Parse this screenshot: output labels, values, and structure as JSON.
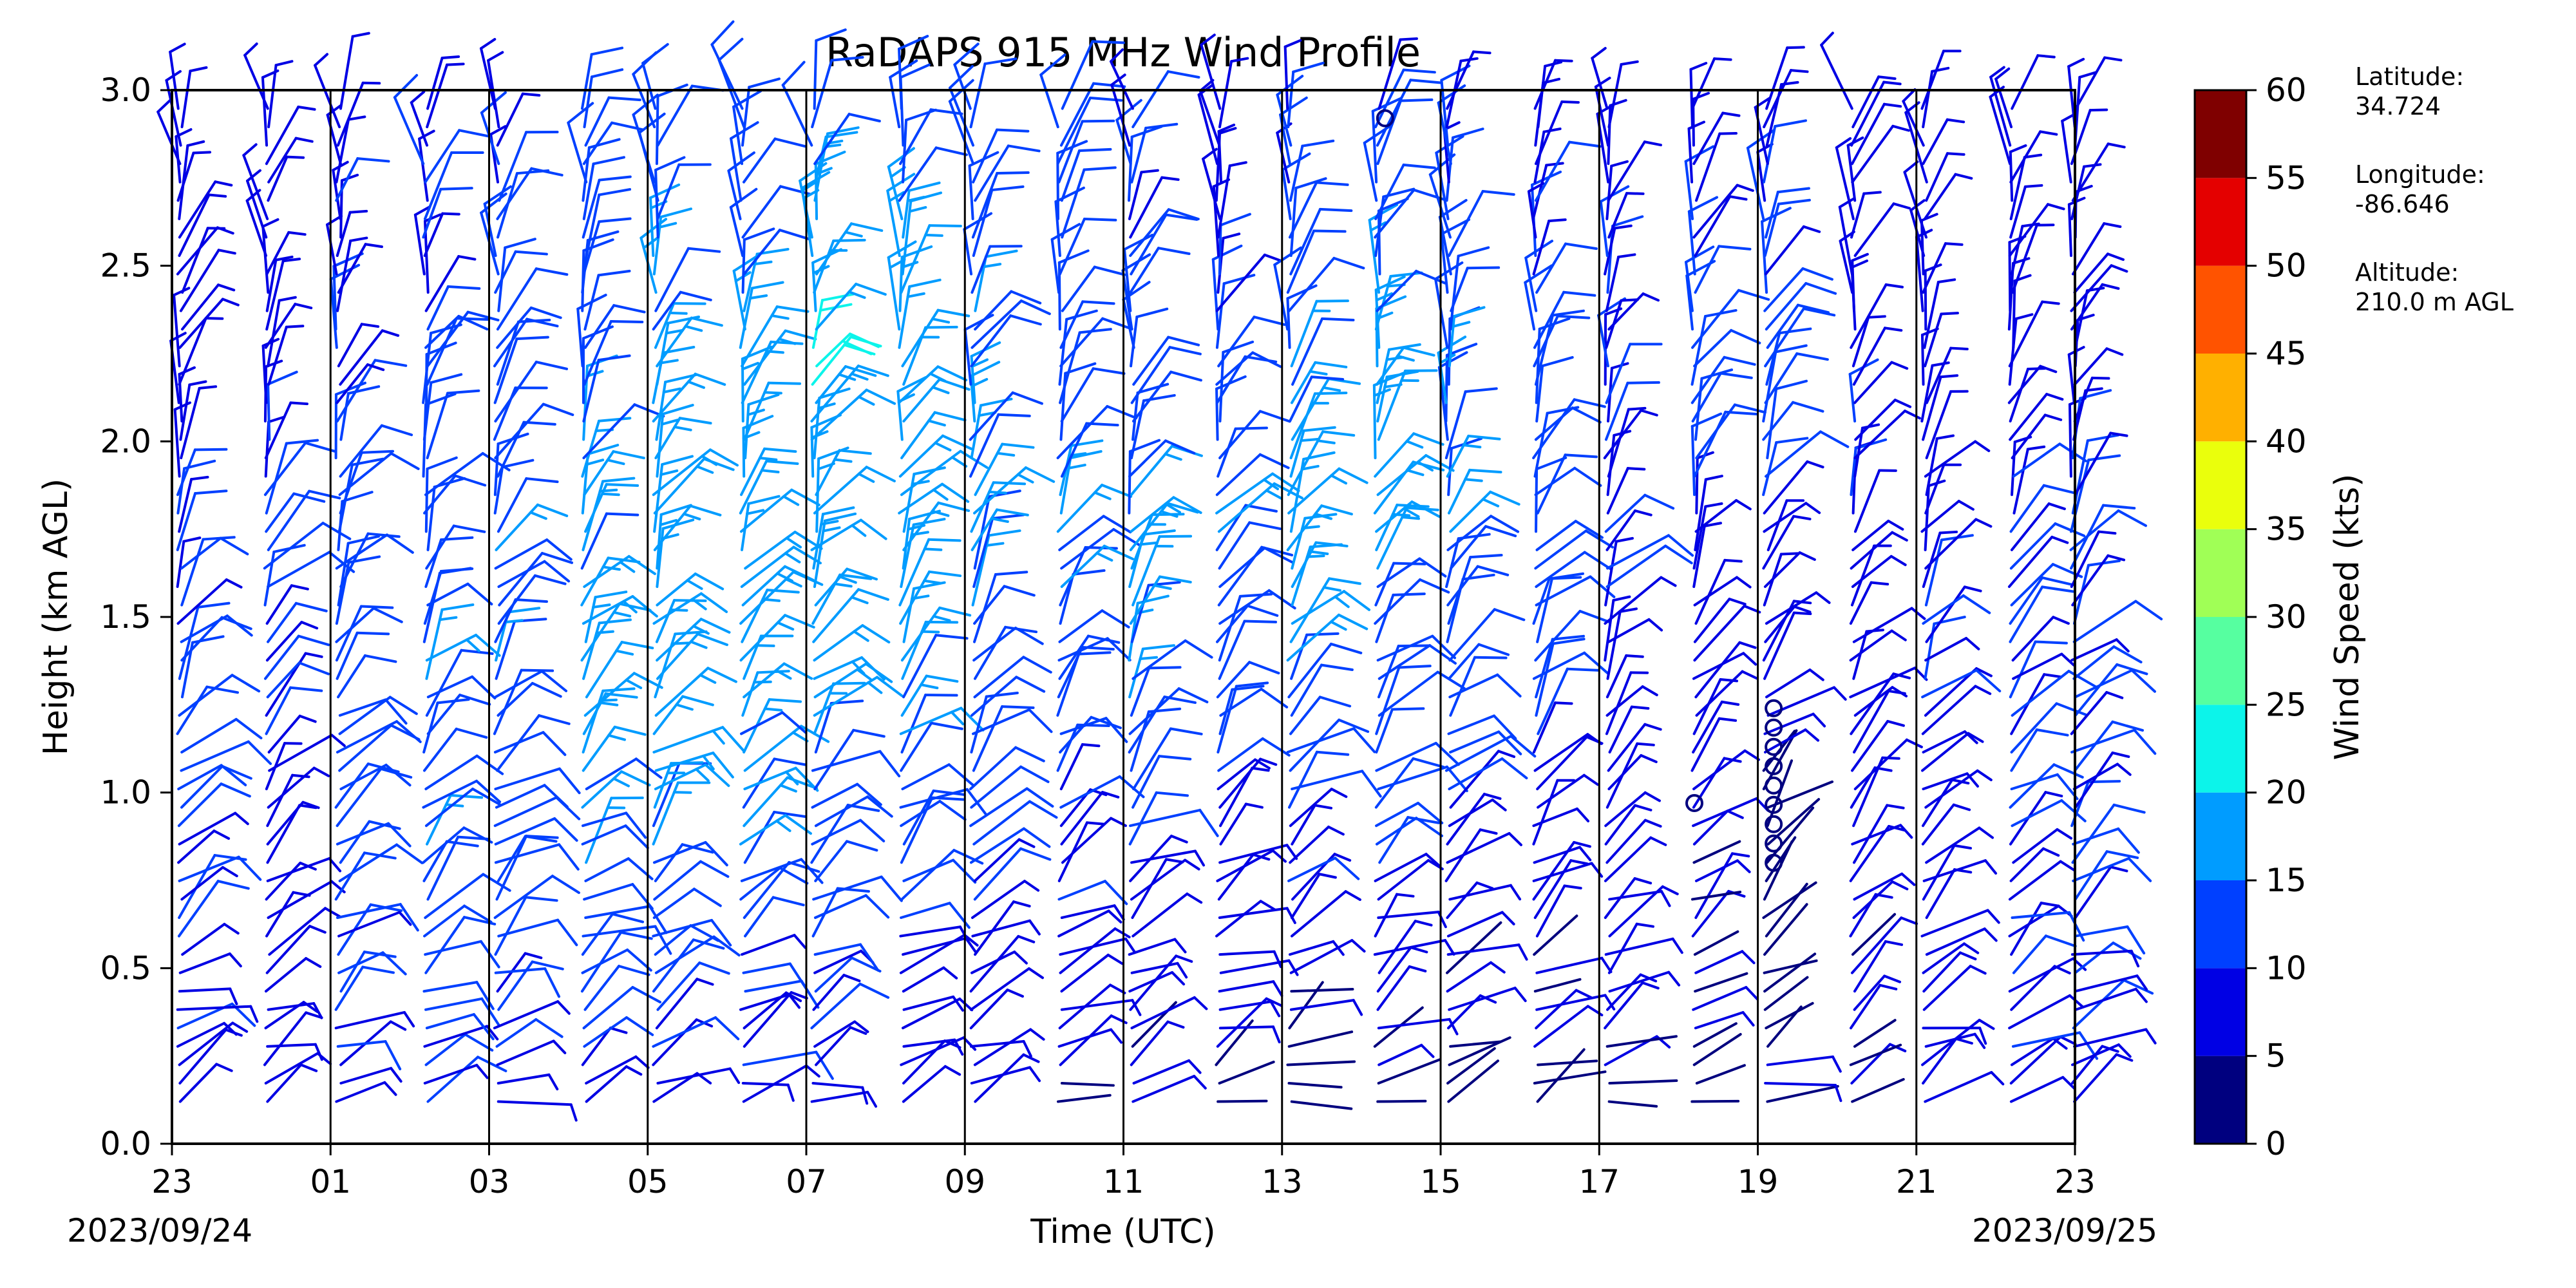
{
  "chart_data": {
    "type": "wind_barbs",
    "title": "RaDAPS 915 MHz Wind Profile",
    "xlabel": "Time (UTC)",
    "ylabel": "Height (km AGL)",
    "xticks": [
      "23",
      "01",
      "03",
      "05",
      "07",
      "09",
      "11",
      "13",
      "15",
      "17",
      "19",
      "21",
      "23"
    ],
    "xtick_hours": [
      23,
      25,
      27,
      29,
      31,
      33,
      35,
      37,
      39,
      41,
      43,
      45,
      47
    ],
    "xlim_hours": [
      23,
      47
    ],
    "yticks": [
      "0.0",
      "0.5",
      "1.0",
      "1.5",
      "2.0",
      "2.5",
      "3.0"
    ],
    "ylim": [
      0,
      3.0
    ],
    "start_date": "2023/09/24",
    "end_date": "2023/09/25",
    "colorbar": {
      "label": "Wind Speed (kts)",
      "ticks": [
        "0",
        "5",
        "10",
        "15",
        "20",
        "25",
        "30",
        "35",
        "40",
        "45",
        "50",
        "55",
        "60"
      ],
      "range": [
        0,
        60
      ],
      "colors": [
        "#00007f",
        "#0000e4",
        "#0040ff",
        "#009cff",
        "#0cf4ea",
        "#56ffa0",
        "#a0ff56",
        "#eaff0c",
        "#ffb000",
        "#ff5300",
        "#e40000",
        "#7f0000"
      ]
    },
    "profile_times_hours": [
      23,
      24,
      25,
      26,
      27,
      28,
      29,
      30,
      31,
      32,
      33,
      34,
      35,
      36,
      37,
      38,
      39,
      40,
      41,
      42,
      43,
      44,
      45,
      46,
      47
    ],
    "profiles": [
      {
        "hour": 23,
        "speed_kts": [
          8,
          10,
          11,
          12,
          10,
          9,
          8,
          6
        ]
      },
      {
        "hour": 24,
        "speed_kts": [
          6,
          7,
          8,
          10,
          12,
          9,
          7,
          6
        ]
      },
      {
        "hour": 25,
        "speed_kts": [
          10,
          11,
          12,
          14,
          12,
          10,
          9,
          8
        ]
      },
      {
        "hour": 26,
        "speed_kts": [
          9,
          11,
          14,
          15,
          14,
          12,
          10,
          9
        ]
      },
      {
        "hour": 27,
        "speed_kts": [
          8,
          10,
          13,
          15,
          14,
          13,
          11,
          9
        ]
      },
      {
        "hour": 28,
        "speed_kts": [
          9,
          12,
          15,
          17,
          16,
          14,
          12,
          10
        ]
      },
      {
        "hour": 29,
        "speed_kts": [
          8,
          11,
          15,
          18,
          19,
          17,
          14,
          11
        ]
      },
      {
        "hour": 30,
        "speed_kts": [
          8,
          10,
          14,
          17,
          18,
          19,
          15,
          12
        ]
      },
      {
        "hour": 31,
        "speed_kts": [
          7,
          10,
          13,
          16,
          17,
          21,
          17,
          13
        ]
      },
      {
        "hour": 32,
        "speed_kts": [
          6,
          9,
          12,
          16,
          18,
          19,
          16,
          12
        ]
      },
      {
        "hour": 33,
        "speed_kts": [
          5,
          8,
          11,
          14,
          16,
          15,
          13,
          11
        ]
      },
      {
        "hour": 34,
        "speed_kts": [
          5,
          7,
          10,
          13,
          15,
          14,
          12,
          10
        ]
      },
      {
        "hour": 35,
        "speed_kts": [
          4,
          7,
          10,
          14,
          16,
          13,
          11,
          9
        ]
      },
      {
        "hour": 36,
        "speed_kts": [
          4,
          6,
          9,
          13,
          15,
          12,
          10,
          8
        ]
      },
      {
        "hour": 37,
        "speed_kts": [
          4,
          6,
          10,
          14,
          17,
          16,
          12,
          9
        ]
      },
      {
        "hour": 38,
        "speed_kts": [
          4,
          6,
          10,
          13,
          16,
          17,
          13,
          10
        ]
      },
      {
        "hour": 39,
        "speed_kts": [
          3,
          5,
          9,
          12,
          14,
          16,
          12,
          9
        ]
      },
      {
        "hour": 40,
        "speed_kts": [
          3,
          5,
          8,
          11,
          12,
          12,
          10,
          8
        ]
      },
      {
        "hour": 41,
        "speed_kts": [
          4,
          6,
          7,
          9,
          10,
          10,
          9,
          8
        ]
      },
      {
        "hour": 42,
        "speed_kts": [
          4,
          5,
          6,
          8,
          9,
          14,
          10,
          8
        ]
      },
      {
        "hour": 43,
        "speed_kts": [
          5,
          4,
          3,
          7,
          9,
          12,
          10,
          8
        ]
      },
      {
        "hour": 44,
        "speed_kts": [
          4,
          5,
          6,
          8,
          9,
          9,
          8,
          7
        ]
      },
      {
        "hour": 45,
        "speed_kts": [
          7,
          8,
          8,
          9,
          9,
          8,
          7,
          6
        ]
      },
      {
        "hour": 46,
        "speed_kts": [
          8,
          9,
          10,
          11,
          10,
          9,
          8,
          7
        ]
      },
      {
        "hour": 47,
        "speed_kts": [
          8,
          9,
          10,
          11,
          10,
          8,
          7,
          6
        ]
      }
    ]
  },
  "site": {
    "latitude_label": "Latitude:",
    "latitude_value": "34.724",
    "longitude_label": "Longitude:",
    "longitude_value": "-86.646",
    "altitude_label": "Altitude:",
    "altitude_value": "210.0 m AGL"
  }
}
